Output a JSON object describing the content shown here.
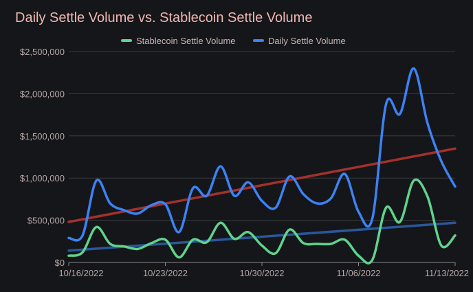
{
  "chart_data": {
    "type": "line",
    "title": "Daily Settle Volume vs. Stablecoin Settle Volume",
    "xlabel": "",
    "ylabel": "",
    "ylim": [
      0,
      2500000
    ],
    "yticks": [
      0,
      500000,
      1000000,
      1500000,
      2000000,
      2500000
    ],
    "ytick_labels": [
      "$0",
      "$500,000",
      "$1,000,000",
      "$1,500,000",
      "$2,000,000",
      "$2,500,000"
    ],
    "x_range": [
      0,
      28
    ],
    "xtick_positions": [
      0,
      7,
      14,
      21,
      28
    ],
    "xtick_labels": [
      "10/16/2022",
      "10/23/2022",
      "10/30/2022",
      "11/06/2022",
      "11/13/2022"
    ],
    "legend_position": "top-center",
    "x": [
      "10/16/2022",
      "10/17/2022",
      "10/18/2022",
      "10/19/2022",
      "10/20/2022",
      "10/21/2022",
      "10/22/2022",
      "10/23/2022",
      "10/24/2022",
      "10/25/2022",
      "10/26/2022",
      "10/27/2022",
      "10/28/2022",
      "10/29/2022",
      "10/30/2022",
      "10/31/2022",
      "11/01/2022",
      "11/02/2022",
      "11/03/2022",
      "11/04/2022",
      "11/05/2022",
      "11/06/2022",
      "11/07/2022",
      "11/08/2022",
      "11/09/2022",
      "11/10/2022",
      "11/11/2022",
      "11/12/2022",
      "11/13/2022"
    ],
    "series": [
      {
        "name": "Stablecoin Settle Volume",
        "color": "#5fd38d",
        "values": [
          80000,
          120000,
          420000,
          220000,
          190000,
          160000,
          230000,
          270000,
          60000,
          270000,
          240000,
          470000,
          280000,
          360000,
          200000,
          110000,
          390000,
          230000,
          220000,
          220000,
          270000,
          80000,
          30000,
          650000,
          480000,
          970000,
          780000,
          200000,
          320000
        ]
      },
      {
        "name": "Daily Settle Volume",
        "color": "#3b82f6",
        "values": [
          290000,
          320000,
          970000,
          700000,
          620000,
          580000,
          680000,
          690000,
          360000,
          880000,
          790000,
          1140000,
          790000,
          950000,
          730000,
          650000,
          1020000,
          810000,
          700000,
          760000,
          1050000,
          600000,
          520000,
          1880000,
          1760000,
          2300000,
          1650000,
          1200000,
          900000
        ]
      }
    ],
    "trendlines": [
      {
        "name": "Daily Settle Volume trend",
        "color": "#b3342f",
        "start": 480000,
        "end": 1350000
      },
      {
        "name": "Stablecoin Settle Volume trend",
        "color": "#2d5fa8",
        "start": 140000,
        "end": 470000
      }
    ]
  }
}
